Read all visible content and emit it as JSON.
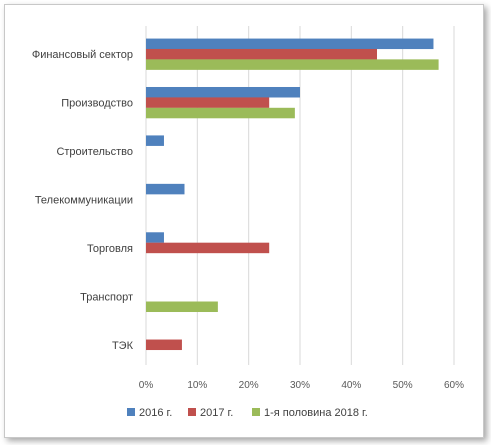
{
  "chart_data": {
    "type": "bar",
    "orientation": "horizontal",
    "title": "",
    "xlabel": "",
    "ylabel": "",
    "categories": [
      "Финансовый сектор",
      "Производство",
      "Строительство",
      "Телекоммуникации",
      "Торговля",
      "Транспорт",
      "ТЭК"
    ],
    "series": [
      {
        "name": "2016 г.",
        "color": "#4f81bd",
        "values": [
          56,
          30,
          3.5,
          7.5,
          3.5,
          0,
          0
        ]
      },
      {
        "name": "2017 г.",
        "color": "#c0504d",
        "values": [
          45,
          24,
          0,
          0,
          24,
          0,
          7
        ]
      },
      {
        "name": "1-я половина 2018 г.",
        "color": "#9bbb59",
        "values": [
          57,
          29,
          0,
          0,
          0,
          14,
          0
        ]
      }
    ],
    "xlim": [
      0,
      60
    ],
    "xticks": [
      0,
      10,
      20,
      30,
      40,
      50,
      60
    ],
    "tick_format": "{v}%",
    "grid": true,
    "legend_position": "bottom"
  }
}
